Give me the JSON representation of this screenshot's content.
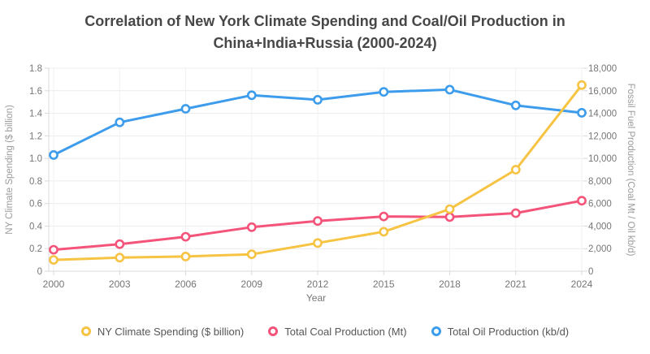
{
  "title": {
    "full": "Correlation of New York Climate Spending and Coal/Oil Production in China+India+Russia (2000-2024)",
    "line1": "Correlation of New York Climate Spending and Coal/Oil Production in",
    "line2": "China+India+Russia (2000-2024)"
  },
  "chart_data": {
    "type": "line",
    "title": "Correlation of New York Climate Spending and Coal/Oil Production in China+India+Russia (2000-2024)",
    "x": [
      2000,
      2003,
      2006,
      2009,
      2012,
      2015,
      2018,
      2021,
      2024
    ],
    "xtick_labels": [
      "2000",
      "2003",
      "2006",
      "2009",
      "2012",
      "2015",
      "2018",
      "2021",
      "2024"
    ],
    "xlabel": "Year",
    "ylabel_left": "NY Climate Spending ($ billion)",
    "ylabel_right": "Fossil Fuel Production (Coal Mt / Oil kb/d)",
    "ylim_left": [
      0,
      1.8
    ],
    "ylim_right": [
      0,
      18000
    ],
    "ytick_labels_left": [
      "0",
      "0.2",
      "0.4",
      "0.6",
      "0.8",
      "1.0",
      "1.2",
      "1.4",
      "1.6",
      "1.8"
    ],
    "ytick_labels_right": [
      "0",
      "2,000",
      "4,000",
      "6,000",
      "8,000",
      "10,000",
      "12,000",
      "14,000",
      "16,000",
      "18,000"
    ],
    "grid": true,
    "legend_position": "bottom",
    "series": [
      {
        "name": "NY Climate Spending ($ billion)",
        "axis": "left",
        "color": "#F6C343",
        "values": [
          0.1,
          0.12,
          0.13,
          0.15,
          0.25,
          0.35,
          0.55,
          0.9,
          1.65
        ]
      },
      {
        "name": "Total Coal Production (Mt)",
        "axis": "right",
        "color": "#F4547A",
        "values": [
          1900,
          2400,
          3050,
          3900,
          4450,
          4850,
          4800,
          5150,
          6250
        ]
      },
      {
        "name": "Total Oil Production (kb/d)",
        "axis": "right",
        "color": "#3D9CEB",
        "values": [
          10300,
          13200,
          14400,
          15600,
          15200,
          15900,
          16100,
          14700,
          14050
        ]
      }
    ]
  },
  "colors": {
    "title_text": "#474747",
    "tick_text": "#767676",
    "axis_title_text": "#9a9a9a",
    "legend_text": "#565656",
    "grid_line": "#ececec",
    "grid_line_vertical": "#f1f1f1",
    "axis_border": "#d9d9d9",
    "point_fill": "#ffffff"
  }
}
